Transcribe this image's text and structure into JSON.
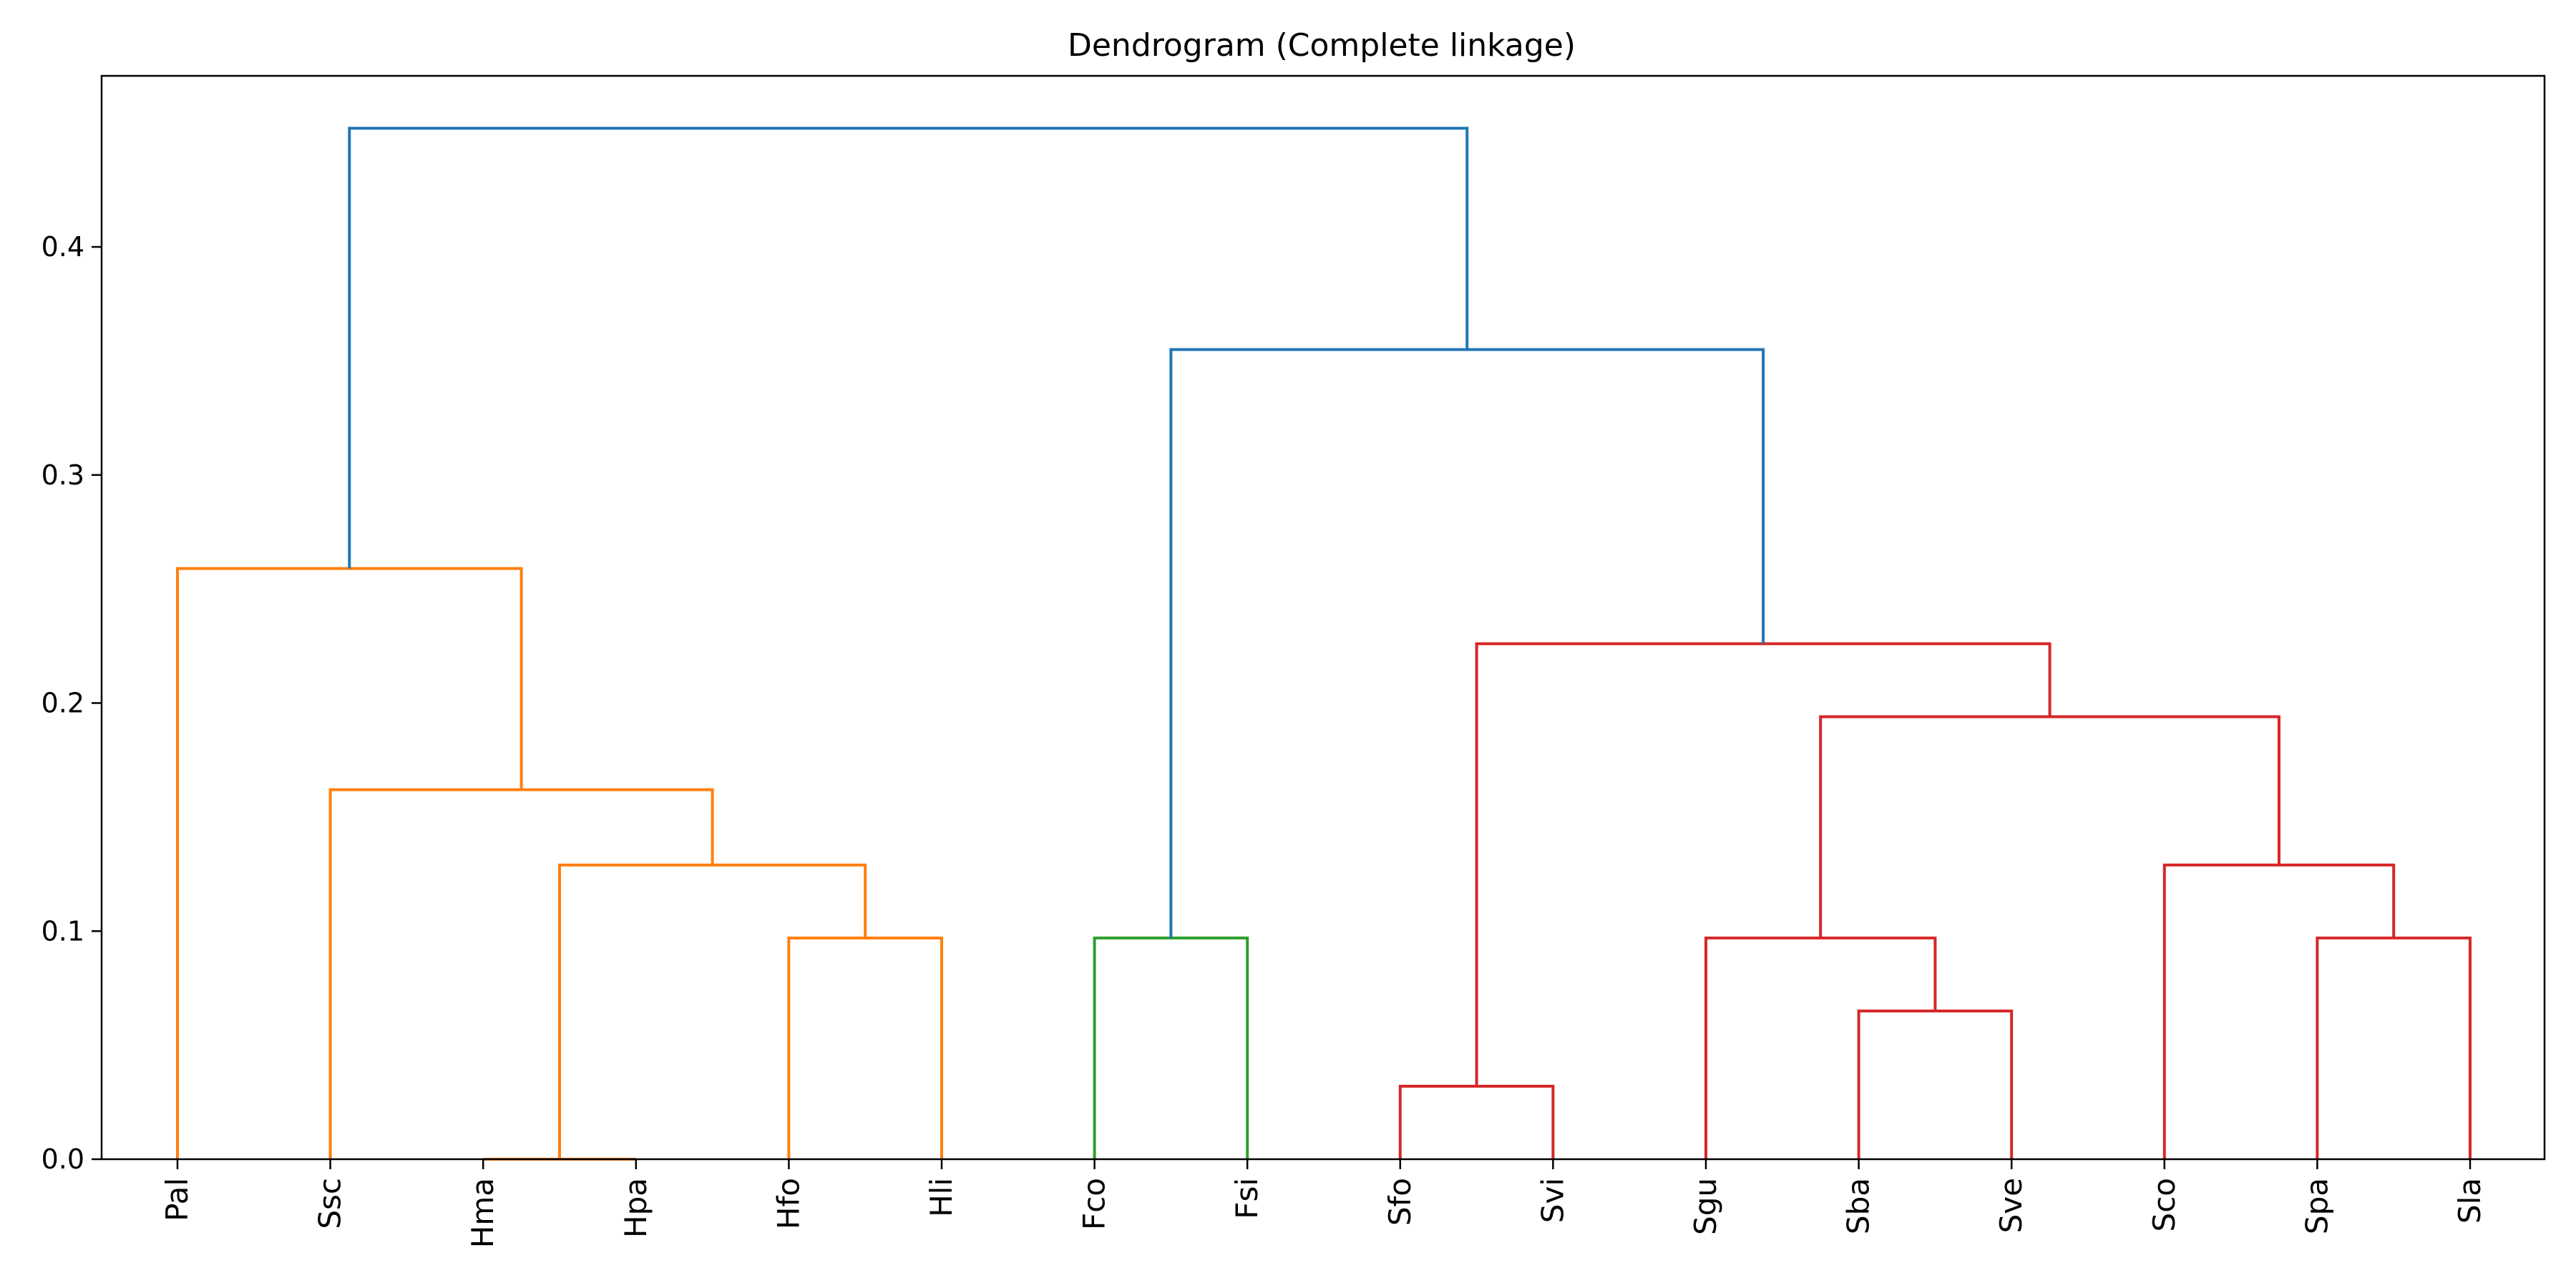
{
  "chart_data": {
    "type": "dendrogram",
    "title": "Dendrogram (Complete linkage)",
    "xlabel": "",
    "ylabel": "",
    "ylim": [
      0,
      0.475
    ],
    "y_ticks": [
      0.0,
      0.1,
      0.2,
      0.3,
      0.4
    ],
    "y_tick_labels": [
      "0.0",
      "0.1",
      "0.2",
      "0.3",
      "0.4"
    ],
    "grid": false,
    "leaves": [
      "Pal",
      "Ssc",
      "Hma",
      "Hpa",
      "Hfo",
      "Hli",
      "Fco",
      "Fsi",
      "Sfo",
      "Svi",
      "Sgu",
      "Sba",
      "Sve",
      "Sco",
      "Spa",
      "Sla"
    ],
    "colors": {
      "above_threshold": "#1f77b4",
      "cluster_orange": "#ff7f0e",
      "cluster_green": "#2ca02c",
      "cluster_red": "#d62728"
    },
    "merges": [
      {
        "id": "m-hma-hpa",
        "left": "leaf:2",
        "right": "leaf:3",
        "height": 0.0,
        "color": "cluster_orange"
      },
      {
        "id": "m-hfo-hli",
        "left": "leaf:4",
        "right": "leaf:5",
        "height": 0.097,
        "color": "cluster_orange"
      },
      {
        "id": "m-h4",
        "left": "node:m-hma-hpa",
        "right": "node:m-hfo-hli",
        "height": 0.129,
        "color": "cluster_orange"
      },
      {
        "id": "m-ssc-h",
        "left": "leaf:1",
        "right": "node:m-h4",
        "height": 0.162,
        "color": "cluster_orange"
      },
      {
        "id": "m-pal",
        "left": "leaf:0",
        "right": "node:m-ssc-h",
        "height": 0.259,
        "color": "cluster_orange"
      },
      {
        "id": "m-fco-fsi",
        "left": "leaf:6",
        "right": "leaf:7",
        "height": 0.097,
        "color": "cluster_green"
      },
      {
        "id": "m-sfo-svi",
        "left": "leaf:8",
        "right": "leaf:9",
        "height": 0.032,
        "color": "cluster_red"
      },
      {
        "id": "m-sba-sve",
        "left": "leaf:11",
        "right": "leaf:12",
        "height": 0.065,
        "color": "cluster_red"
      },
      {
        "id": "m-sgu",
        "left": "leaf:10",
        "right": "node:m-sba-sve",
        "height": 0.097,
        "color": "cluster_red"
      },
      {
        "id": "m-spa-sla",
        "left": "leaf:14",
        "right": "leaf:15",
        "height": 0.097,
        "color": "cluster_red"
      },
      {
        "id": "m-sco",
        "left": "leaf:13",
        "right": "node:m-spa-sla",
        "height": 0.129,
        "color": "cluster_red"
      },
      {
        "id": "m-s5",
        "left": "node:m-sgu",
        "right": "node:m-sco",
        "height": 0.194,
        "color": "cluster_red"
      },
      {
        "id": "m-s7",
        "left": "node:m-sfo-svi",
        "right": "node:m-s5",
        "height": 0.226,
        "color": "cluster_red"
      },
      {
        "id": "m-f-s",
        "left": "node:m-fco-fsi",
        "right": "node:m-s7",
        "height": 0.355,
        "color": "above_threshold"
      },
      {
        "id": "m-root",
        "left": "node:m-pal",
        "right": "node:m-f-s",
        "height": 0.452,
        "color": "above_threshold"
      }
    ]
  }
}
